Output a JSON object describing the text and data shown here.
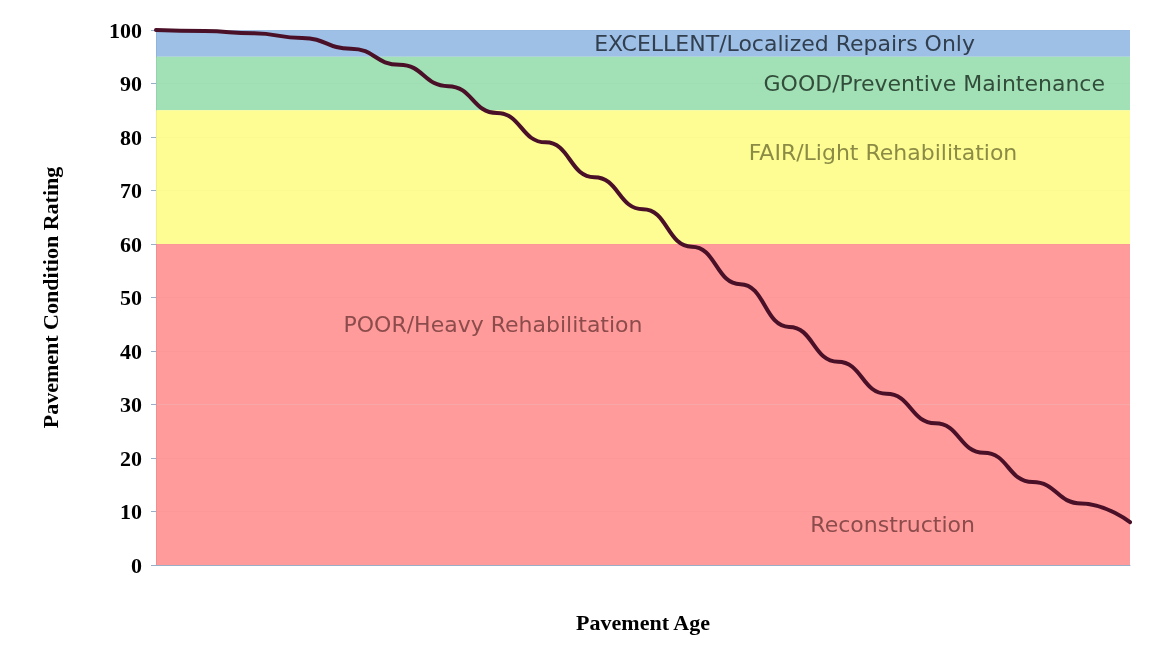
{
  "chart_data": {
    "type": "line",
    "xlabel": "Pavement Age",
    "ylabel": "Pavement Condition Rating",
    "categories": [
      null,
      null,
      null,
      null,
      null,
      null,
      null,
      null,
      null,
      null,
      null,
      null,
      null,
      null,
      null,
      null,
      null,
      null,
      null,
      null,
      null
    ],
    "series": [
      {
        "color": "#4a1028",
        "values": [
          100,
          99.8,
          99.4,
          98.5,
          96.5,
          93.5,
          89.5,
          84.5,
          79,
          72.5,
          66.5,
          59.5,
          52.5,
          44.5,
          38,
          32,
          26.5,
          21,
          15.5,
          11.5,
          8
        ]
      }
    ],
    "ylim": [
      0,
      100
    ],
    "yticks": [
      0,
      10,
      20,
      30,
      40,
      50,
      60,
      70,
      80,
      90,
      100
    ],
    "grid": "y",
    "marker": "none",
    "line_style": "solid",
    "tick_labels": "y",
    "bands": [
      {
        "axis": "y",
        "from": 95,
        "to": 100,
        "label": "EXCELLENT/Localized Repairs Only",
        "color": "#8db4e2"
      },
      {
        "axis": "y",
        "from": 85,
        "to": 95,
        "label": "GOOD/Preventive Maintenance",
        "color": "#92dba9"
      },
      {
        "axis": "y",
        "from": 60,
        "to": 85,
        "label": "FAIR/Light Rehabilitation",
        "color": "#fdfd80"
      },
      {
        "axis": "y",
        "from": 30,
        "to": 60,
        "label": "POOR/Heavy Rehabilitation",
        "color": "#ff8a8a"
      },
      {
        "axis": "y",
        "from": 0,
        "to": 30,
        "label": "Reconstruction",
        "color": "#ff8a8a"
      }
    ]
  }
}
